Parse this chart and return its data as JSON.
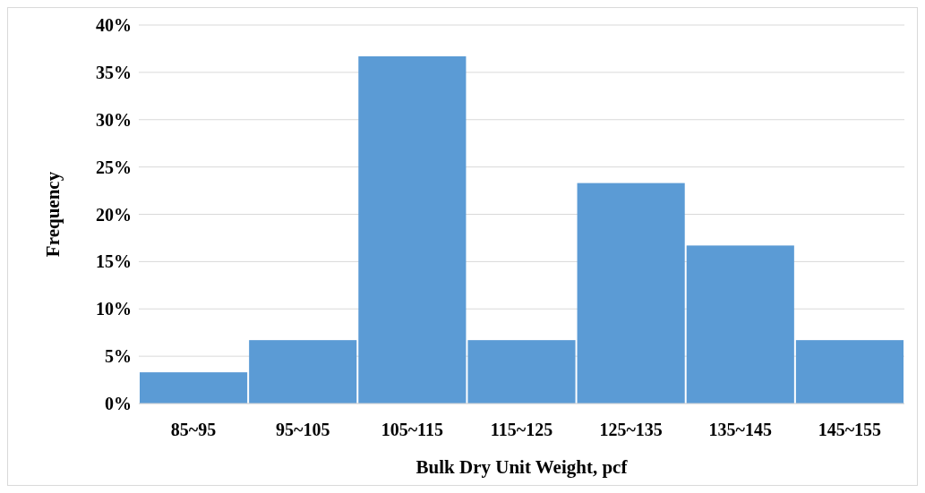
{
  "chart_data": {
    "type": "bar",
    "xlabel": "Bulk Dry Unit Weight, pcf",
    "ylabel": "Frequency",
    "categories": [
      "85~95",
      "95~105",
      "105~115",
      "115~125",
      "125~135",
      "135~145",
      "145~155"
    ],
    "values": [
      3.3,
      6.7,
      36.7,
      6.7,
      23.3,
      16.7,
      6.7
    ],
    "color": "#5b9bd5",
    "ylim": [
      0,
      40
    ],
    "yticks": [
      {
        "value": 0,
        "label": "0%"
      },
      {
        "value": 5,
        "label": "5%"
      },
      {
        "value": 10,
        "label": "10%"
      },
      {
        "value": 15,
        "label": "15%"
      },
      {
        "value": 20,
        "label": "20%"
      },
      {
        "value": 25,
        "label": "25%"
      },
      {
        "value": 30,
        "label": "30%"
      },
      {
        "value": 35,
        "label": "35%"
      },
      {
        "value": 40,
        "label": "40%"
      }
    ],
    "grid": "y"
  }
}
